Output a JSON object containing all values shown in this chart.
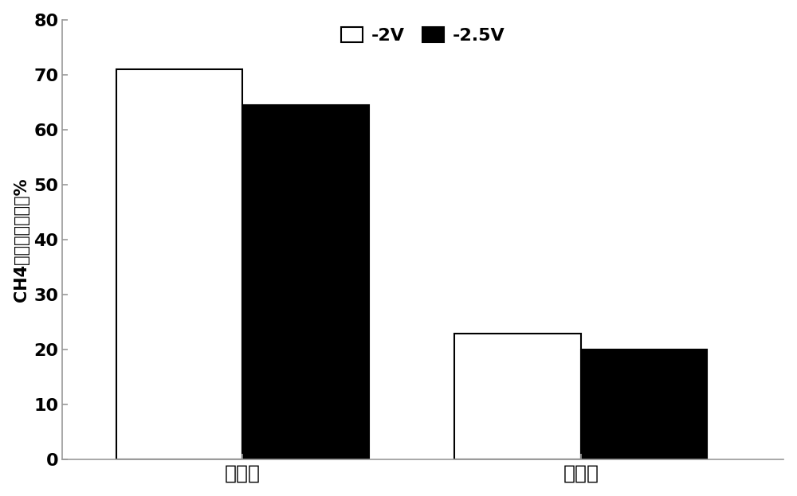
{
  "categories": [
    "实施例",
    "对比例"
  ],
  "series": [
    {
      "label": "-2V",
      "values": [
        71,
        23
      ],
      "color": "#ffffff",
      "edgecolor": "#000000"
    },
    {
      "label": "-2.5V",
      "values": [
        64.5,
        20
      ],
      "color": "#000000",
      "edgecolor": "#000000"
    }
  ],
  "ylabel": "CH4的法拉第效率／%",
  "ylim": [
    0,
    80
  ],
  "yticks": [
    0,
    10,
    20,
    30,
    40,
    50,
    60,
    70,
    80
  ],
  "bar_width": 0.28,
  "group_centers": [
    0.35,
    1.1
  ],
  "xlim": [
    -0.05,
    1.55
  ],
  "background_color": "#ffffff",
  "ylabel_fontsize": 15,
  "tick_fontsize": 16,
  "legend_fontsize": 16,
  "xtick_fontsize": 18,
  "spine_color": "#999999",
  "tick_color": "#999999"
}
